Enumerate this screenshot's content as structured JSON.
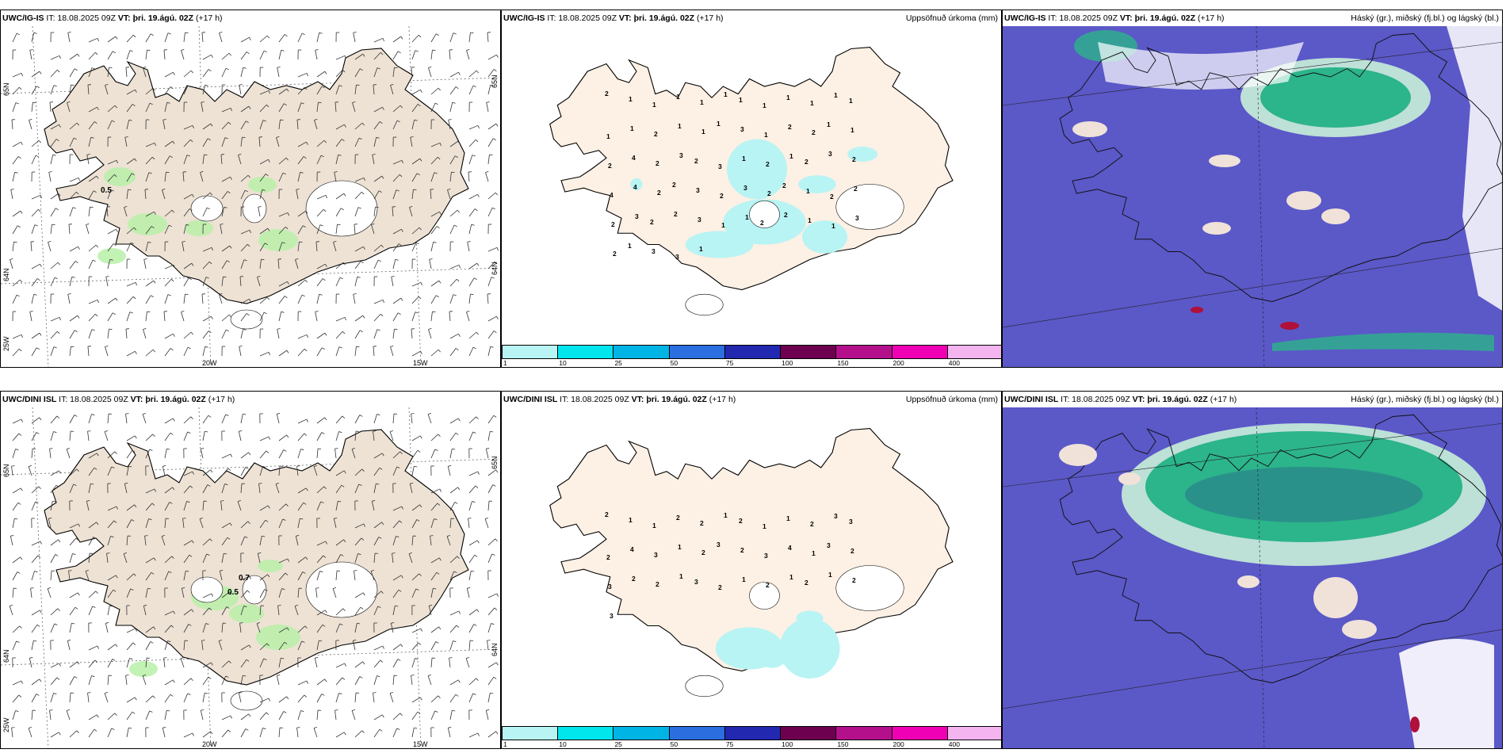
{
  "rows": [
    {
      "wind": {
        "model": "UWC/IG-IS",
        "it": "IT: 18.08.2025 09Z",
        "vt_label": "VT:",
        "vt_value": "þri. 19.ágú. 02Z",
        "lead": "(+17 h)",
        "value_labels": [
          "0.5"
        ],
        "lat_labels": [
          "65N",
          "64N",
          "25W",
          "65N",
          "64N"
        ],
        "lon_labels": [
          "20W",
          "15W"
        ]
      },
      "precip": {
        "model": "UWC/IG-IS",
        "it": "IT: 18.08.2025 09Z",
        "vt_label": "VT:",
        "vt_value": "þri. 19.ágú. 02Z",
        "lead": "(+17 h)",
        "title": "Uppsöfnuð úrkoma (mm)"
      },
      "cloud": {
        "model": "UWC/IG-IS",
        "it": "IT: 18.08.2025 09Z",
        "vt_label": "VT:",
        "vt_value": "þri. 19.ágú. 02Z",
        "lead": "(+17 h)",
        "title": "Háský (gr.), miðský (fj.bl.) og lágský (bl.)"
      }
    },
    {
      "wind": {
        "model": "UWC/DINI ISL",
        "it": "IT: 18.08.2025 09Z",
        "vt_label": "VT:",
        "vt_value": "þri. 19.ágú. 02Z",
        "lead": "(+17 h)",
        "value_labels": [
          "0.7",
          "0.5"
        ],
        "lat_labels": [
          "65N",
          "64N",
          "25W",
          "65N",
          "64N"
        ],
        "lon_labels": [
          "20W",
          "15W"
        ]
      },
      "precip": {
        "model": "UWC/DINI ISL",
        "it": "IT: 18.08.2025 09Z",
        "vt_label": "VT:",
        "vt_value": "þri. 19.ágú. 02Z",
        "lead": "(+17 h)",
        "title": "Uppsöfnuð úrkoma (mm)"
      },
      "cloud": {
        "model": "UWC/DINI ISL",
        "it": "IT: 18.08.2025 09Z",
        "vt_label": "VT:",
        "vt_value": "þri. 19.ágú. 02Z",
        "lead": "(+17 h)",
        "title": "Háský (gr.), miðský (fj.bl.) og lágský (bl.)"
      }
    }
  ],
  "precip_colorbar": {
    "colors": [
      "#b8f4f4",
      "#00e6ec",
      "#00b4e6",
      "#2a6ee0",
      "#2228b0",
      "#6e0050",
      "#b4108c",
      "#f000b4",
      "#f4b4f0"
    ],
    "ticks": [
      "1",
      "10",
      "25",
      "50",
      "75",
      "100",
      "150",
      "200",
      "400"
    ]
  },
  "precip_numbers": {
    "top": [
      "2",
      "1",
      "1",
      "1",
      "1",
      "1",
      "1",
      "1",
      "1",
      "1",
      "1",
      "1",
      "1",
      "1",
      "2",
      "1",
      "1",
      "1",
      "3",
      "1",
      "2",
      "2",
      "1",
      "1",
      "2",
      "4",
      "2",
      "3",
      "2",
      "3",
      "1",
      "2",
      "1",
      "2",
      "3",
      "2",
      "4",
      "4",
      "2",
      "2",
      "3",
      "2",
      "3",
      "2",
      "2",
      "1",
      "2",
      "2",
      "2",
      "3",
      "2",
      "2",
      "3",
      "1",
      "1",
      "2",
      "2",
      "1",
      "1",
      "3",
      "2",
      "1",
      "3",
      "3",
      "1"
    ],
    "bottom": [
      "2",
      "1",
      "1",
      "2",
      "2",
      "1",
      "2",
      "1",
      "1",
      "2",
      "3",
      "3",
      "2",
      "4",
      "3",
      "1",
      "2",
      "3",
      "2",
      "3",
      "4",
      "1",
      "3",
      "2",
      "3",
      "2",
      "2",
      "1",
      "3",
      "2",
      "1",
      "2",
      "1",
      "2",
      "1",
      "2",
      "3"
    ]
  },
  "colors": {
    "land": "#ede2d4",
    "land_precip": "#fdf0e4",
    "precip_light": "#b8f4f4",
    "wind_green": "#b8f0a8",
    "cloud_bg": "#5b58c8",
    "cloud_green": "#2cb48a",
    "cloud_light": "#c8f0d8"
  }
}
